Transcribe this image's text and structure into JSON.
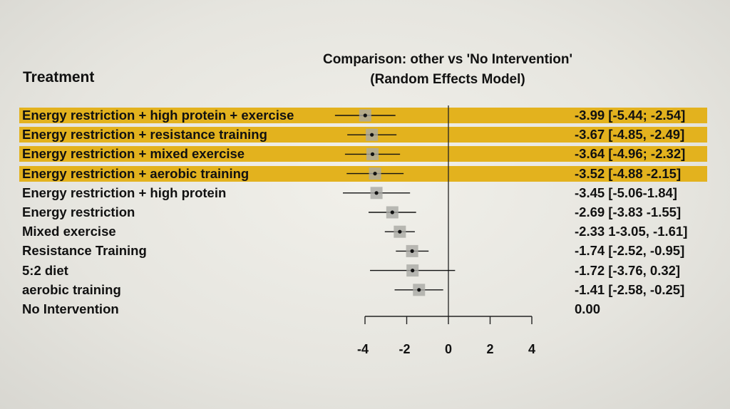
{
  "header": {
    "treatment": "Treatment",
    "title_line1": "Comparison: other vs 'No Intervention'",
    "title_line2": "(Random Effects Model)"
  },
  "highlight_color": "#e3b21e",
  "chart_data": {
    "type": "forest",
    "title": "Comparison: other vs 'No Intervention' (Random Effects Model)",
    "xlim": [
      -4,
      4
    ],
    "xticks": [
      -4,
      -2,
      0,
      2,
      4
    ],
    "xtick_labels": [
      "-4",
      "-2",
      "0",
      "2",
      "4"
    ],
    "reference_line": 0,
    "rows": [
      {
        "label": "Energy restriction + high protein + exercise",
        "estimate": -3.99,
        "lower": -5.44,
        "upper": -2.54,
        "ci_text": "-3.99 [-5.44; -2.54]",
        "highlight": true
      },
      {
        "label": "Energy restriction + resistance training",
        "estimate": -3.67,
        "lower": -4.85,
        "upper": -2.49,
        "ci_text": "-3.67 [-4.85, -2.49]",
        "highlight": true
      },
      {
        "label": "Energy restriction + mixed exercise",
        "estimate": -3.64,
        "lower": -4.96,
        "upper": -2.32,
        "ci_text": "-3.64 [-4.96; -2.32]",
        "highlight": true
      },
      {
        "label": "Energy restriction + aerobic training",
        "estimate": -3.52,
        "lower": -4.88,
        "upper": -2.15,
        "ci_text": "-3.52 [-4.88 -2.15]",
        "highlight": true
      },
      {
        "label": "Energy restriction + high protein",
        "estimate": -3.45,
        "lower": -5.06,
        "upper": -1.84,
        "ci_text": "-3.45 [-5.06-1.84]",
        "highlight": false
      },
      {
        "label": "Energy restriction",
        "estimate": -2.69,
        "lower": -3.83,
        "upper": -1.55,
        "ci_text": "-2.69 [-3.83 -1.55]",
        "highlight": false
      },
      {
        "label": "Mixed exercise",
        "estimate": -2.33,
        "lower": -3.05,
        "upper": -1.61,
        "ci_text": "-2.33 1-3.05, -1.61]",
        "highlight": false
      },
      {
        "label": "Resistance Training",
        "estimate": -1.74,
        "lower": -2.52,
        "upper": -0.95,
        "ci_text": "-1.74 [-2.52, -0.95]",
        "highlight": false
      },
      {
        "label": "5:2 diet",
        "estimate": -1.72,
        "lower": -3.76,
        "upper": 0.32,
        "ci_text": "-1.72 [-3.76, 0.32]",
        "highlight": false
      },
      {
        "label": "aerobic training",
        "estimate": -1.41,
        "lower": -2.58,
        "upper": -0.25,
        "ci_text": "-1.41 [-2.58, -0.25]",
        "highlight": false
      },
      {
        "label": "No Intervention",
        "estimate": 0,
        "lower": null,
        "upper": null,
        "ci_text": "0.00",
        "highlight": false
      }
    ]
  }
}
